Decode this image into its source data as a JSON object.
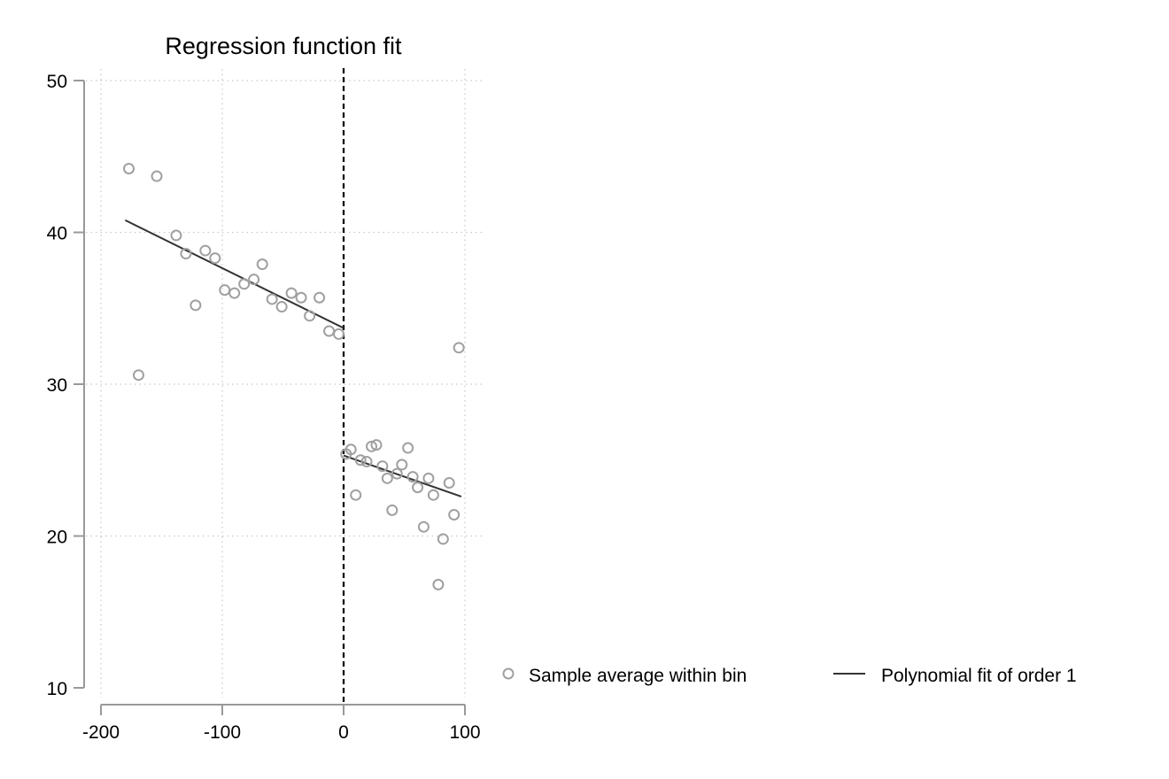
{
  "chart_data": {
    "type": "scatter",
    "title": "Regression function fit",
    "xlabel": "",
    "ylabel": "",
    "xlim": [
      -200,
      100
    ],
    "ylim": [
      10,
      50
    ],
    "x_ticks": [
      -200,
      -100,
      0,
      100
    ],
    "y_ticks": [
      10,
      20,
      30,
      40,
      50
    ],
    "grid": true,
    "cutoff": 0,
    "legend_position": "bottom-right",
    "colors": {
      "points": "#a0a0a0",
      "fit": "#333333",
      "cutoff": "#000000",
      "grid": "#c8c8c8",
      "axis": "#999999"
    },
    "series": [
      {
        "name": "Sample average within bin",
        "kind": "scatter",
        "points": [
          [
            -177,
            44.2
          ],
          [
            -169,
            30.6
          ],
          [
            -154,
            43.7
          ],
          [
            -138,
            39.8
          ],
          [
            -130,
            38.6
          ],
          [
            -122,
            35.2
          ],
          [
            -114,
            38.8
          ],
          [
            -106,
            38.3
          ],
          [
            -98,
            36.2
          ],
          [
            -90,
            36.0
          ],
          [
            -82,
            36.6
          ],
          [
            -74,
            36.9
          ],
          [
            -67,
            37.9
          ],
          [
            -59,
            35.6
          ],
          [
            -51,
            35.1
          ],
          [
            -43,
            36.0
          ],
          [
            -35,
            35.7
          ],
          [
            -28,
            34.5
          ],
          [
            -20,
            35.7
          ],
          [
            -12,
            33.5
          ],
          [
            -4,
            33.3
          ],
          [
            2,
            25.4
          ],
          [
            6,
            25.7
          ],
          [
            10,
            22.7
          ],
          [
            14,
            25.0
          ],
          [
            19,
            24.9
          ],
          [
            23,
            25.9
          ],
          [
            27,
            26.0
          ],
          [
            32,
            24.6
          ],
          [
            36,
            23.8
          ],
          [
            40,
            21.7
          ],
          [
            44,
            24.1
          ],
          [
            48,
            24.7
          ],
          [
            53,
            25.8
          ],
          [
            57,
            23.9
          ],
          [
            61,
            23.2
          ],
          [
            66,
            20.6
          ],
          [
            70,
            23.8
          ],
          [
            74,
            22.7
          ],
          [
            78,
            16.8
          ],
          [
            82,
            19.8
          ],
          [
            87,
            23.5
          ],
          [
            91,
            21.4
          ],
          [
            95,
            32.4
          ]
        ]
      },
      {
        "name": "Polynomial fit of order 1",
        "kind": "line",
        "segments": [
          [
            [
              -180,
              40.8
            ],
            [
              0,
              33.7
            ]
          ],
          [
            [
              0,
              25.3
            ],
            [
              97,
              22.6
            ]
          ]
        ]
      }
    ]
  }
}
